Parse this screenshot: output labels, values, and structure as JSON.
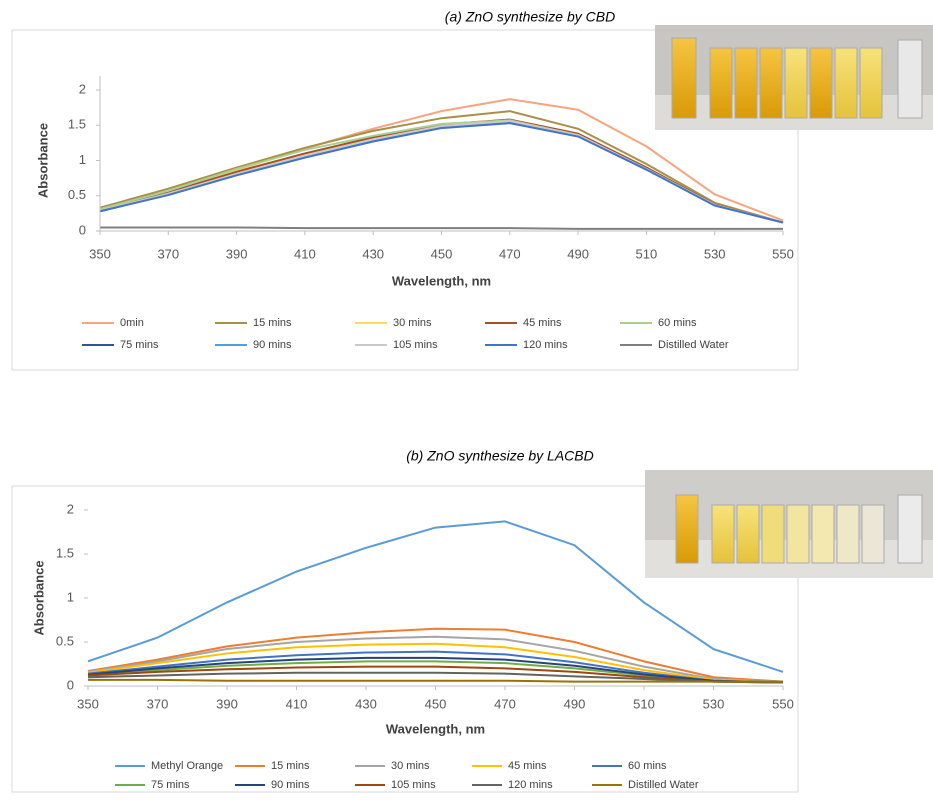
{
  "chart_data": [
    {
      "type": "line",
      "title": "(a) ZnO synthesize by CBD",
      "x_label": "Wavelength, nm",
      "y_label": "Absorbance",
      "x": [
        350,
        370,
        390,
        410,
        430,
        450,
        470,
        490,
        510,
        530,
        550
      ],
      "xlim": [
        350,
        550
      ],
      "xticks": [
        350,
        370,
        390,
        410,
        430,
        450,
        470,
        490,
        510,
        530,
        550
      ],
      "ylim": [
        0,
        2
      ],
      "yticks": [
        0,
        0.5,
        1,
        1.5,
        2
      ],
      "series": [
        {
          "name": "0min",
          "color": "#f4a582",
          "values": [
            0.32,
            0.56,
            0.87,
            1.17,
            1.45,
            1.7,
            1.87,
            1.72,
            1.2,
            0.52,
            0.15
          ]
        },
        {
          "name": "15 mins",
          "color": "#a8904a",
          "values": [
            0.33,
            0.6,
            0.9,
            1.18,
            1.42,
            1.6,
            1.7,
            1.45,
            0.95,
            0.4,
            0.12
          ]
        },
        {
          "name": "30 mins",
          "color": "#ffd966",
          "values": [
            0.3,
            0.55,
            0.85,
            1.1,
            1.32,
            1.5,
            1.58,
            1.38,
            0.9,
            0.38,
            0.12
          ]
        },
        {
          "name": "45 mins",
          "color": "#a0522d",
          "values": [
            0.3,
            0.55,
            0.84,
            1.1,
            1.33,
            1.51,
            1.58,
            1.38,
            0.9,
            0.38,
            0.12
          ]
        },
        {
          "name": "60 mins",
          "color": "#a9d08e",
          "values": [
            0.31,
            0.57,
            0.88,
            1.15,
            1.35,
            1.52,
            1.57,
            1.36,
            0.88,
            0.37,
            0.12
          ]
        },
        {
          "name": "75 mins",
          "color": "#2e5597",
          "values": [
            0.28,
            0.52,
            0.8,
            1.05,
            1.28,
            1.47,
            1.54,
            1.35,
            0.88,
            0.37,
            0.12
          ]
        },
        {
          "name": "90 mins",
          "color": "#5b9bd5",
          "values": [
            0.28,
            0.52,
            0.8,
            1.06,
            1.29,
            1.48,
            1.55,
            1.35,
            0.88,
            0.37,
            0.12
          ]
        },
        {
          "name": "105 mins",
          "color": "#c9c9c9",
          "values": [
            0.29,
            0.53,
            0.81,
            1.07,
            1.3,
            1.49,
            1.56,
            1.36,
            0.88,
            0.37,
            0.12
          ]
        },
        {
          "name": "120 mins",
          "color": "#4472c4",
          "values": [
            0.28,
            0.51,
            0.79,
            1.04,
            1.27,
            1.46,
            1.53,
            1.34,
            0.87,
            0.36,
            0.12
          ]
        },
        {
          "name": "Distilled Water",
          "color": "#7f7f7f",
          "values": [
            0.05,
            0.05,
            0.05,
            0.04,
            0.04,
            0.04,
            0.04,
            0.03,
            0.03,
            0.03,
            0.03
          ]
        }
      ]
    },
    {
      "type": "line",
      "title": "(b) ZnO synthesize by LACBD",
      "x_label": "Wavelength, nm",
      "y_label": "Absorbance",
      "x": [
        350,
        370,
        390,
        410,
        430,
        450,
        470,
        490,
        510,
        530,
        550
      ],
      "xlim": [
        350,
        550
      ],
      "xticks": [
        350,
        370,
        390,
        410,
        430,
        450,
        470,
        490,
        510,
        530,
        550
      ],
      "ylim": [
        0,
        2
      ],
      "yticks": [
        0,
        0.5,
        1,
        1.5,
        2
      ],
      "series": [
        {
          "name": "Methyl Orange",
          "color": "#5b9bd5",
          "values": [
            0.28,
            0.55,
            0.95,
            1.3,
            1.57,
            1.8,
            1.87,
            1.6,
            0.95,
            0.42,
            0.16
          ]
        },
        {
          "name": "15 mins",
          "color": "#ed7d31",
          "values": [
            0.17,
            0.3,
            0.45,
            0.55,
            0.61,
            0.65,
            0.64,
            0.5,
            0.28,
            0.1,
            0.05
          ]
        },
        {
          "name": "30 mins",
          "color": "#a5a5a5",
          "values": [
            0.16,
            0.28,
            0.42,
            0.5,
            0.54,
            0.56,
            0.53,
            0.4,
            0.22,
            0.08,
            0.05
          ]
        },
        {
          "name": "45 mins",
          "color": "#ffc000",
          "values": [
            0.15,
            0.26,
            0.37,
            0.44,
            0.47,
            0.48,
            0.44,
            0.33,
            0.18,
            0.07,
            0.04
          ]
        },
        {
          "name": "60 mins",
          "color": "#4472c4",
          "values": [
            0.14,
            0.22,
            0.3,
            0.35,
            0.38,
            0.39,
            0.36,
            0.27,
            0.15,
            0.06,
            0.04
          ]
        },
        {
          "name": "75 mins",
          "color": "#70ad47",
          "values": [
            0.13,
            0.18,
            0.23,
            0.26,
            0.28,
            0.28,
            0.26,
            0.2,
            0.12,
            0.05,
            0.04
          ]
        },
        {
          "name": "90 mins",
          "color": "#264478",
          "values": [
            0.13,
            0.2,
            0.26,
            0.3,
            0.32,
            0.32,
            0.3,
            0.23,
            0.13,
            0.06,
            0.04
          ]
        },
        {
          "name": "105 mins",
          "color": "#9e480e",
          "values": [
            0.12,
            0.16,
            0.19,
            0.21,
            0.22,
            0.22,
            0.2,
            0.16,
            0.1,
            0.05,
            0.04
          ]
        },
        {
          "name": "120 mins",
          "color": "#636363",
          "values": [
            0.1,
            0.12,
            0.14,
            0.15,
            0.15,
            0.15,
            0.14,
            0.11,
            0.08,
            0.05,
            0.04
          ]
        },
        {
          "name": "Distilled Water",
          "color": "#997300",
          "values": [
            0.07,
            0.07,
            0.06,
            0.06,
            0.06,
            0.06,
            0.06,
            0.05,
            0.05,
            0.05,
            0.05
          ]
        }
      ]
    }
  ]
}
